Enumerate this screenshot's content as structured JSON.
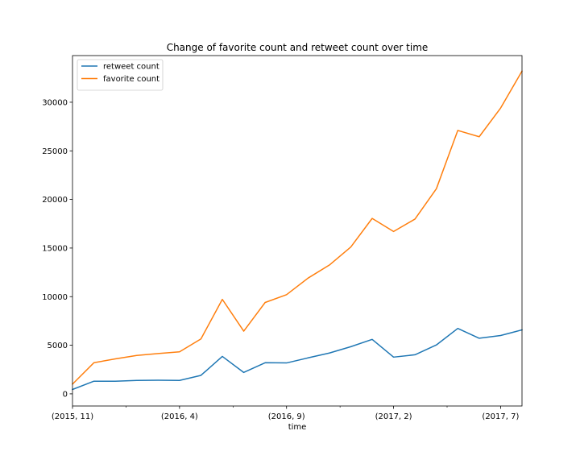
{
  "chart_data": {
    "type": "line",
    "title": "Change of favorite count and retweet count over time",
    "xlabel": "time",
    "ylabel": "",
    "x": [
      "(2015, 11)",
      "(2015, 12)",
      "(2016, 1)",
      "(2016, 2)",
      "(2016, 3)",
      "(2016, 4)",
      "(2016, 5)",
      "(2016, 6)",
      "(2016, 7)",
      "(2016, 8)",
      "(2016, 9)",
      "(2016, 10)",
      "(2016, 11)",
      "(2016, 12)",
      "(2017, 1)",
      "(2017, 2)",
      "(2017, 3)",
      "(2017, 4)",
      "(2017, 5)",
      "(2017, 6)",
      "(2017, 7)",
      "(2017, 8)"
    ],
    "x_tick_labels": [
      {
        "index": 0,
        "label": "(2015, 11)"
      },
      {
        "index": 5,
        "label": "(2016, 4)"
      },
      {
        "index": 10,
        "label": "(2016, 9)"
      },
      {
        "index": 15,
        "label": "(2017, 2)"
      },
      {
        "index": 20,
        "label": "(2017, 7)"
      }
    ],
    "minor_tick_indices": [
      2.5,
      7.5,
      12.5,
      17.5
    ],
    "ylim": [
      -1250,
      34800
    ],
    "yticks": [
      0,
      5000,
      10000,
      15000,
      20000,
      25000,
      30000
    ],
    "grid": false,
    "legend_position": "upper left",
    "series": [
      {
        "name": "retweet count",
        "color": "#1f77b4",
        "values": [
          450,
          1300,
          1300,
          1380,
          1400,
          1380,
          1900,
          3850,
          2200,
          3200,
          3180,
          3700,
          4200,
          4850,
          5600,
          3780,
          4020,
          5030,
          6730,
          5720,
          6000,
          6580
        ]
      },
      {
        "name": "favorite count",
        "color": "#ff7f0e",
        "values": [
          1000,
          3200,
          3600,
          3950,
          4150,
          4320,
          5650,
          9720,
          6450,
          9400,
          10200,
          11900,
          13250,
          15100,
          18050,
          16700,
          17980,
          21100,
          27100,
          26450,
          29400,
          33200
        ]
      }
    ]
  }
}
